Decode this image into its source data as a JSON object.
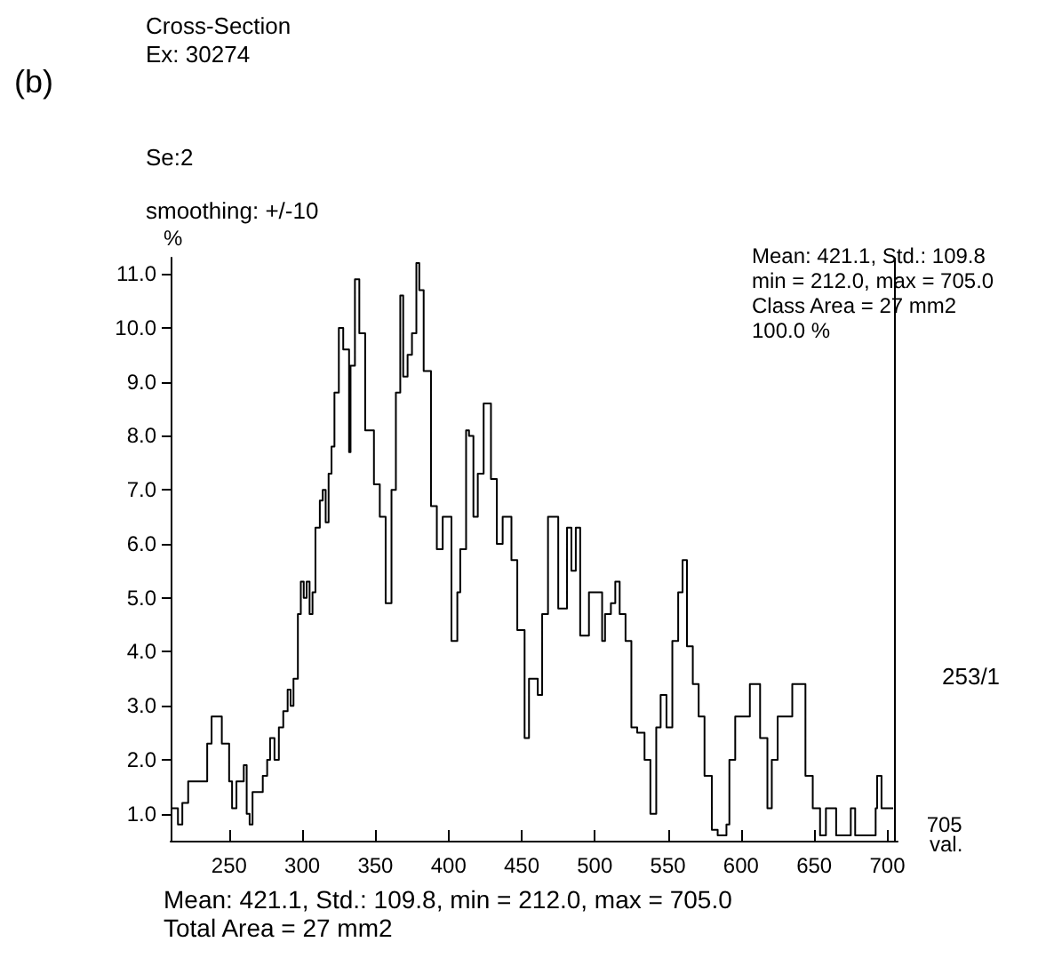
{
  "chart_data": {
    "type": "step",
    "title": "Cross-Section",
    "subtitle": "Ex: 30274",
    "xlabel": "val.",
    "ylabel": "%",
    "annotations": [
      "(b)",
      "Se:2",
      "smoothing: +/-10",
      "Mean: 421.1, Std.: 109.8\nmin = 212.0, max = 705.0\nClass Area = 27 mm2\n100.0 %",
      "253/1",
      "Mean: 421.1, Std.: 109.8, min = 212.0, max = 705.0\nTotal Area = 27 mm2"
    ],
    "series": [
      {
        "color": "#000000",
        "x": [
          210,
          215,
          218,
          222,
          230,
          235,
          238,
          242,
          245,
          248,
          250,
          252,
          255,
          258,
          260,
          262,
          264,
          266,
          270,
          273,
          276,
          278,
          281,
          284,
          287,
          290,
          292,
          294,
          297,
          299,
          301,
          303,
          305,
          307,
          309,
          312,
          314,
          316,
          318,
          320,
          322,
          325,
          328,
          332,
          333,
          336,
          339,
          343,
          349,
          353,
          357,
          361,
          364,
          367,
          369,
          372,
          375,
          378,
          380,
          383,
          388,
          392,
          396,
          402,
          406,
          408,
          412,
          414,
          417,
          420,
          424,
          429,
          433,
          437,
          443,
          447,
          452,
          455,
          461,
          464,
          468,
          474,
          475,
          479,
          481,
          484,
          487,
          490,
          493,
          496,
          501,
          505,
          507,
          511,
          514,
          517,
          521,
          525,
          529,
          534,
          538,
          542,
          545,
          549,
          553,
          557,
          560,
          563,
          567,
          571,
          575,
          580,
          584,
          590,
          592,
          596,
          602,
          606,
          610,
          613,
          618,
          621,
          625,
          629,
          635,
          640,
          644,
          649,
          654,
          658,
          665,
          675,
          678,
          692,
          693,
          696,
          704
        ],
        "values": [
          1.1,
          0.8,
          1.2,
          1.6,
          1.6,
          2.3,
          2.8,
          2.8,
          2.3,
          2.3,
          1.6,
          1.1,
          1.6,
          1.6,
          1.9,
          1.0,
          0.8,
          1.4,
          1.4,
          1.7,
          2.0,
          2.4,
          2.0,
          2.6,
          2.9,
          3.3,
          3.0,
          3.5,
          4.7,
          5.3,
          5.0,
          5.3,
          4.7,
          5.1,
          6.3,
          6.8,
          7.0,
          6.4,
          7.3,
          7.8,
          8.8,
          10.0,
          9.6,
          7.7,
          9.3,
          10.9,
          9.9,
          8.1,
          7.1,
          6.5,
          4.9,
          7.0,
          8.8,
          10.6,
          9.1,
          9.5,
          9.9,
          11.2,
          10.7,
          9.2,
          6.7,
          5.9,
          6.5,
          4.2,
          5.1,
          5.9,
          8.1,
          8.0,
          6.5,
          7.3,
          8.6,
          7.2,
          6.0,
          6.5,
          5.7,
          4.4,
          2.4,
          3.5,
          3.2,
          4.7,
          6.5,
          6.5,
          4.8,
          4.8,
          6.3,
          5.5,
          6.3,
          4.3,
          4.3,
          5.1,
          5.1,
          4.2,
          4.7,
          4.9,
          5.3,
          4.7,
          4.2,
          2.6,
          2.5,
          2.0,
          1.0,
          2.6,
          3.2,
          2.6,
          4.2,
          5.1,
          5.7,
          4.1,
          3.4,
          2.8,
          1.7,
          0.7,
          0.6,
          0.8,
          2.0,
          2.8,
          2.8,
          3.4,
          3.4,
          2.4,
          1.1,
          2.0,
          2.8,
          2.8,
          3.4,
          3.4,
          1.7,
          1.1,
          0.6,
          1.1,
          0.6,
          1.1,
          0.6,
          1.1,
          1.7,
          1.1,
          1.1
        ]
      }
    ],
    "xlim": [
      210,
      707
    ],
    "ylim": [
      0.5,
      11.3
    ],
    "xticks": [
      250,
      300,
      350,
      400,
      450,
      500,
      550,
      600,
      650,
      700
    ],
    "yticks": [
      {
        "value": 1,
        "label": "1.0"
      },
      {
        "value": 2,
        "label": "2.0"
      },
      {
        "value": 3,
        "label": "3.0"
      },
      {
        "value": 4,
        "label": "4.0"
      },
      {
        "value": 5,
        "label": "5.0"
      },
      {
        "value": 6,
        "label": "6.0"
      },
      {
        "value": 7,
        "label": "7.0"
      },
      {
        "value": 8,
        "label": "8.0"
      },
      {
        "value": 9,
        "label": "9.0"
      },
      {
        "value": 10,
        "label": "10.0"
      },
      {
        "value": 11,
        "label": "11.0"
      }
    ],
    "ref_lines": [
      {
        "axis": "x",
        "value": 705,
        "label": "705",
        "color": "#000000"
      }
    ],
    "grid": false,
    "marker": "none"
  }
}
